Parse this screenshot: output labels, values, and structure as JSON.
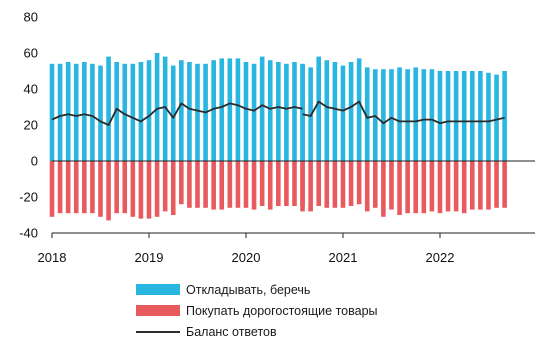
{
  "colors": {
    "save": "#29b6e0",
    "buy": "#e95a5f",
    "balance": "#2b2b2b",
    "axis": "#222222"
  },
  "chart_data": {
    "type": "bar",
    "ylim": [
      -40,
      80
    ],
    "yticks": [
      80,
      60,
      40,
      20,
      0,
      -20,
      -40
    ],
    "xrange": [
      2018,
      2023
    ],
    "xticks": [
      {
        "label": "2018",
        "x": 2018
      },
      {
        "label": "2019",
        "x": 2019
      },
      {
        "label": "2020",
        "x": 2020
      },
      {
        "label": "2021",
        "x": 2021
      },
      {
        "label": "2022",
        "x": 2022
      }
    ],
    "segments": [
      {
        "start": 2018.0,
        "step": 0.08333,
        "save": [
          54,
          54,
          55,
          54,
          55,
          54,
          53,
          58,
          55,
          54,
          54,
          55,
          56,
          60,
          58,
          53,
          56,
          55,
          54,
          54,
          56,
          57,
          57,
          57,
          55,
          54,
          58,
          56,
          55,
          54,
          55,
          54
        ],
        "buy": [
          -31,
          -29,
          -29,
          -29,
          -29,
          -29,
          -31,
          -33,
          -29,
          -29,
          -31,
          -32,
          -32,
          -31,
          -28,
          -30,
          -24,
          -26,
          -26,
          -26,
          -27,
          -27,
          -26,
          -26,
          -26,
          -27,
          -25,
          -27,
          -25,
          -25,
          -25,
          -25
        ],
        "balance": [
          23,
          25,
          26,
          25,
          26,
          25,
          22,
          20,
          29,
          26,
          24,
          22,
          25,
          29,
          30,
          24,
          32,
          29,
          28,
          27,
          29,
          30,
          32,
          31,
          29,
          28,
          31,
          29,
          30,
          29,
          30,
          29
        ]
      },
      {
        "start": 2020.583,
        "step": 0.08333,
        "save": [
          53,
          52,
          58,
          56,
          55,
          53,
          55,
          57,
          52,
          51,
          51,
          51,
          52,
          51,
          52,
          51,
          51,
          50,
          50,
          50,
          50,
          50,
          50,
          49,
          48,
          50
        ],
        "buy": [
          -28,
          -28,
          -25,
          -26,
          -26,
          -26,
          -25,
          -24,
          -28,
          -26,
          -31,
          -27,
          -30,
          -29,
          -29,
          -29,
          -28,
          -29,
          -28,
          -28,
          -29,
          -27,
          -27,
          -27,
          -26,
          -26
        ],
        "balance": [
          26,
          25,
          33,
          30,
          29,
          28,
          30,
          33,
          24,
          25,
          21,
          24,
          22,
          22,
          22,
          23,
          23,
          21,
          22,
          22,
          22,
          22,
          22,
          22,
          23,
          24
        ]
      }
    ],
    "series_labels": {
      "save": "Откладывать, беречь",
      "buy": "Покупать дорогостоящие товары",
      "balance": "Баланс ответов"
    }
  }
}
